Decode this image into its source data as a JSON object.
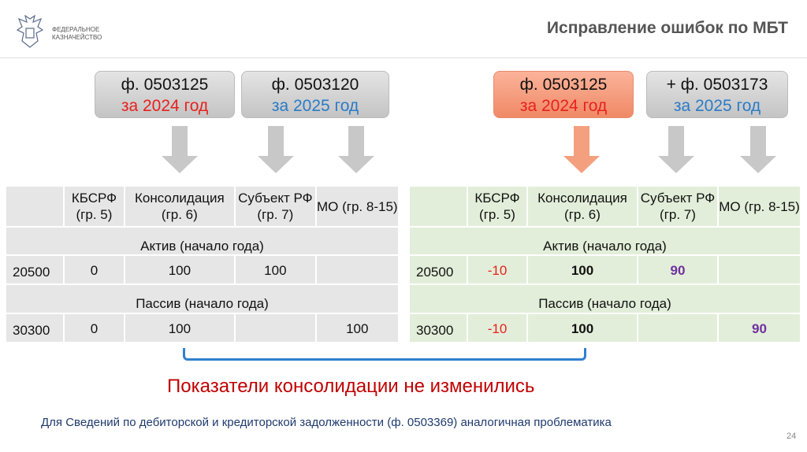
{
  "header": {
    "org_line1": "ФЕДЕРАЛЬНОЕ",
    "org_line2": "КАЗНАЧЕЙСТВО",
    "title": "Исправление ошибок по МБТ"
  },
  "boxes": [
    {
      "form": "ф. 0503125",
      "period": "за 2024 год"
    },
    {
      "form": "ф. 0503120",
      "period": "за 2025 год"
    },
    {
      "form": "ф. 0503125",
      "period": "за 2024 год"
    },
    {
      "form": "+ ф. 0503173",
      "period": "за 2025 год"
    }
  ],
  "colors": {
    "red": "#e8211c",
    "blue": "#2a7bc8",
    "orange": "#f08966",
    "purple": "#7030a0",
    "note": "#c00000"
  },
  "tables": {
    "columns": [
      "КБСРФ (гр. 5)",
      "Консолидация (гр. 6)",
      "Субъект РФ (гр. 7)",
      "МО (гр. 8-15)"
    ],
    "section_active": "Актив (начало года)",
    "section_passive": "Пассив (начало года)",
    "left": {
      "r1": {
        "code": "20500",
        "v": [
          "0",
          "100",
          "100",
          ""
        ]
      },
      "r2": {
        "code": "30300",
        "v": [
          "0",
          "100",
          "",
          "100"
        ]
      }
    },
    "right": {
      "r1": {
        "code": "20500",
        "v": [
          "-10",
          "100",
          "90",
          ""
        ]
      },
      "r2": {
        "code": "30300",
        "v": [
          "-10",
          "100",
          "",
          "90"
        ]
      }
    }
  },
  "note": "Показатели консолидации не изменились",
  "footer": "Для Сведений по дебиторской и кредиторской задолженности (ф. 0503369) аналогичная проблематика",
  "page_number": "24"
}
